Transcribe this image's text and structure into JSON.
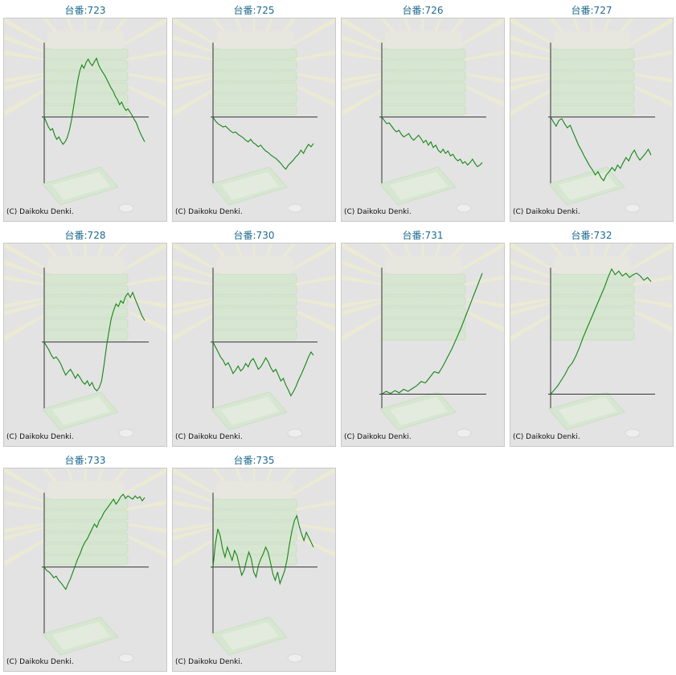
{
  "copyright": "(C) Daikoku Denki.",
  "colors": {
    "title": "#1d6b8f",
    "line": "#168516",
    "axis": "#333333",
    "panel": "#e3e3e3"
  },
  "chart_data": [
    {
      "type": "line",
      "title": "台番:723",
      "ylim": [
        -80,
        90
      ],
      "values": [
        0,
        -6,
        -12,
        -16,
        -14,
        -22,
        -27,
        -24,
        -29,
        -33,
        -30,
        -25,
        -16,
        -4,
        12,
        28,
        44,
        56,
        63,
        59,
        66,
        70,
        65,
        62,
        67,
        71,
        63,
        58,
        54,
        50,
        45,
        40,
        35,
        31,
        25,
        21,
        15,
        18,
        12,
        8,
        10,
        6,
        2,
        -3,
        -7,
        -14,
        -20,
        -25,
        -30
      ]
    },
    {
      "type": "line",
      "title": "台番:725",
      "ylim": [
        -80,
        90
      ],
      "values": [
        0,
        -5,
        -8,
        -10,
        -12,
        -11,
        -14,
        -17,
        -19,
        -18,
        -21,
        -23,
        -25,
        -28,
        -30,
        -27,
        -31,
        -33,
        -36,
        -34,
        -38,
        -41,
        -43,
        -46,
        -48,
        -50,
        -53,
        -56,
        -60,
        -63,
        -58,
        -55,
        -52,
        -48,
        -45,
        -40,
        -44,
        -38,
        -33,
        -36,
        -32
      ]
    },
    {
      "type": "line",
      "title": "台番:726",
      "ylim": [
        -80,
        90
      ],
      "values": [
        0,
        -4,
        -8,
        -7,
        -11,
        -15,
        -18,
        -16,
        -21,
        -24,
        -22,
        -20,
        -25,
        -28,
        -25,
        -22,
        -26,
        -31,
        -28,
        -34,
        -30,
        -37,
        -34,
        -40,
        -43,
        -39,
        -44,
        -41,
        -47,
        -45,
        -50,
        -53,
        -51,
        -56,
        -54,
        -58,
        -55,
        -51,
        -56,
        -60,
        -58,
        -55
      ]
    },
    {
      "type": "line",
      "title": "台番:727",
      "ylim": [
        -80,
        90
      ],
      "values": [
        0,
        -6,
        -11,
        -4,
        -2,
        -8,
        -13,
        -10,
        -18,
        -26,
        -34,
        -40,
        -47,
        -53,
        -59,
        -64,
        -70,
        -66,
        -73,
        -77,
        -70,
        -66,
        -61,
        -65,
        -58,
        -62,
        -55,
        -49,
        -53,
        -45,
        -40,
        -47,
        -52,
        -48,
        -44,
        -39,
        -46
      ]
    },
    {
      "type": "line",
      "title": "台番:728",
      "ylim": [
        -80,
        90
      ],
      "values": [
        0,
        -5,
        -10,
        -16,
        -20,
        -18,
        -22,
        -27,
        -34,
        -40,
        -36,
        -33,
        -38,
        -44,
        -39,
        -43,
        -48,
        -51,
        -47,
        -53,
        -49,
        -56,
        -59,
        -55,
        -47,
        -28,
        -6,
        12,
        28,
        38,
        46,
        43,
        50,
        47,
        55,
        59,
        54,
        60,
        52,
        45,
        38,
        31,
        26
      ]
    },
    {
      "type": "line",
      "title": "台番:730",
      "ylim": [
        -80,
        90
      ],
      "values": [
        0,
        -6,
        -12,
        -18,
        -22,
        -28,
        -25,
        -31,
        -38,
        -34,
        -29,
        -35,
        -32,
        -26,
        -30,
        -23,
        -20,
        -26,
        -33,
        -30,
        -25,
        -19,
        -24,
        -31,
        -36,
        -33,
        -40,
        -47,
        -44,
        -52,
        -58,
        -65,
        -60,
        -54,
        -46,
        -40,
        -33,
        -26,
        -18,
        -12,
        -16
      ]
    },
    {
      "type": "line",
      "title": "台番:731",
      "ylim": [
        -20,
        180
      ],
      "values": [
        0,
        4,
        1,
        5,
        2,
        7,
        4,
        8,
        12,
        18,
        16,
        24,
        32,
        30,
        40,
        52,
        64,
        78,
        92,
        108,
        124,
        140,
        156,
        172
      ]
    },
    {
      "type": "line",
      "title": "台番:732",
      "ylim": [
        -20,
        180
      ],
      "values": [
        0,
        6,
        12,
        20,
        28,
        38,
        44,
        54,
        66,
        80,
        92,
        104,
        116,
        128,
        140,
        152,
        166,
        178,
        170,
        175,
        168,
        172,
        166,
        170,
        172,
        168,
        162,
        166,
        160
      ]
    },
    {
      "type": "line",
      "title": "台番:733",
      "ylim": [
        -80,
        90
      ],
      "values": [
        0,
        -4,
        -6,
        -9,
        -13,
        -11,
        -16,
        -19,
        -23,
        -27,
        -20,
        -14,
        -6,
        2,
        10,
        16,
        24,
        30,
        34,
        40,
        46,
        52,
        48,
        56,
        60,
        66,
        70,
        74,
        78,
        82,
        76,
        80,
        85,
        88,
        83,
        86,
        84,
        82,
        86,
        83,
        85,
        80,
        84
      ]
    },
    {
      "type": "line",
      "title": "台番:735",
      "ylim": [
        -80,
        90
      ],
      "values": [
        0,
        28,
        46,
        38,
        22,
        12,
        24,
        16,
        8,
        20,
        14,
        2,
        -10,
        -4,
        8,
        18,
        10,
        -6,
        -12,
        2,
        10,
        16,
        24,
        18,
        6,
        -8,
        -16,
        -6,
        -20,
        -12,
        -4,
        10,
        28,
        44,
        56,
        62,
        50,
        40,
        32,
        42,
        36,
        30,
        24
      ]
    }
  ]
}
